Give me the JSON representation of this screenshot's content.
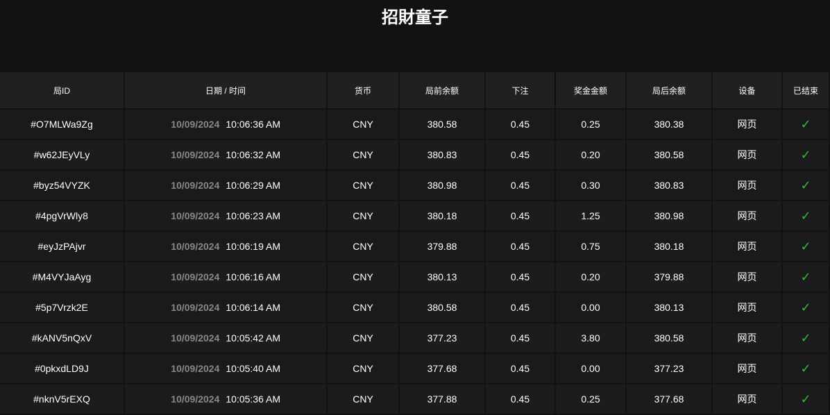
{
  "title": "招財童子",
  "headers": [
    "局ID",
    "日期 / 时间",
    "货币",
    "局前余额",
    "下注",
    "奖金金额",
    "局后余额",
    "设备",
    "已结束"
  ],
  "rows": [
    {
      "id": "#O7MLWa9Zg",
      "date": "10/09/2024",
      "time": "10:06:36 AM",
      "currency": "CNY",
      "before": "380.58",
      "bet": "0.45",
      "win": "0.25",
      "after": "380.38",
      "device": "网页"
    },
    {
      "id": "#w62JEyVLy",
      "date": "10/09/2024",
      "time": "10:06:32 AM",
      "currency": "CNY",
      "before": "380.83",
      "bet": "0.45",
      "win": "0.20",
      "after": "380.58",
      "device": "网页"
    },
    {
      "id": "#byz54VYZK",
      "date": "10/09/2024",
      "time": "10:06:29 AM",
      "currency": "CNY",
      "before": "380.98",
      "bet": "0.45",
      "win": "0.30",
      "after": "380.83",
      "device": "网页"
    },
    {
      "id": "#4pgVrWly8",
      "date": "10/09/2024",
      "time": "10:06:23 AM",
      "currency": "CNY",
      "before": "380.18",
      "bet": "0.45",
      "win": "1.25",
      "after": "380.98",
      "device": "网页"
    },
    {
      "id": "#eyJzPAjvr",
      "date": "10/09/2024",
      "time": "10:06:19 AM",
      "currency": "CNY",
      "before": "379.88",
      "bet": "0.45",
      "win": "0.75",
      "after": "380.18",
      "device": "网页"
    },
    {
      "id": "#M4VYJaAyg",
      "date": "10/09/2024",
      "time": "10:06:16 AM",
      "currency": "CNY",
      "before": "380.13",
      "bet": "0.45",
      "win": "0.20",
      "after": "379.88",
      "device": "网页"
    },
    {
      "id": "#5p7Vrzk2E",
      "date": "10/09/2024",
      "time": "10:06:14 AM",
      "currency": "CNY",
      "before": "380.58",
      "bet": "0.45",
      "win": "0.00",
      "after": "380.13",
      "device": "网页"
    },
    {
      "id": "#kANV5nQxV",
      "date": "10/09/2024",
      "time": "10:05:42 AM",
      "currency": "CNY",
      "before": "377.23",
      "bet": "0.45",
      "win": "3.80",
      "after": "380.58",
      "device": "网页"
    },
    {
      "id": "#0pkxdLD9J",
      "date": "10/09/2024",
      "time": "10:05:40 AM",
      "currency": "CNY",
      "before": "377.68",
      "bet": "0.45",
      "win": "0.00",
      "after": "377.23",
      "device": "网页"
    },
    {
      "id": "#nknV5rEXQ",
      "date": "10/09/2024",
      "time": "10:05:36 AM",
      "currency": "CNY",
      "before": "377.88",
      "bet": "0.45",
      "win": "0.25",
      "after": "377.68",
      "device": "网页"
    }
  ],
  "finished_icon": "checkmark-icon",
  "colors": {
    "check": "#2fbf2f",
    "date": "#888888"
  }
}
